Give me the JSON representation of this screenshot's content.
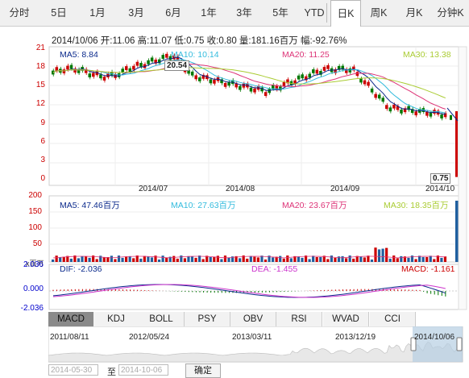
{
  "tabs": [
    "分时",
    "5日",
    "1月",
    "3月",
    "6月",
    "1年",
    "3年",
    "5年",
    "YTD",
    "日K",
    "周K",
    "月K",
    "分钟K"
  ],
  "active_tab": "日K",
  "quote": "2014/10/06 开:11.06 高:11.07 低:0.75 收:0.80 量:181.16百万 幅:-92.76%",
  "main_ma": {
    "ma5": "MA5: 8.84",
    "ma10": "MA10: 10.14",
    "ma20": "MA20: 11.25",
    "ma30": "MA30: 13.38"
  },
  "price_axis": [
    "21",
    "18",
    "15",
    "12",
    "9",
    "6",
    "3",
    "0"
  ],
  "high_label": "20.54",
  "low_label": "0.75",
  "date_axis": [
    "2014/07",
    "2014/08",
    "2014/09",
    "2014/10"
  ],
  "vol_ma": {
    "ma5": "MA5: 47.46百万",
    "ma10": "MA10: 27.63百万",
    "ma20": "MA20: 23.67百万",
    "ma30": "MA30: 18.35百万"
  },
  "vol_axis": [
    "200",
    "150",
    "100",
    "50"
  ],
  "vol_unit": "x百万",
  "macd": {
    "dif": "DIF: -2.036",
    "dea": "DEA: -1.455",
    "macd": "MACD: -1.161"
  },
  "macd_axis": [
    "2.036",
    "0.000",
    "-2.036"
  ],
  "indicator_tabs": [
    "MACD",
    "KDJ",
    "BOLL",
    "PSY",
    "OBV",
    "RSI",
    "WVAD",
    "CCI"
  ],
  "active_indicator": "MACD",
  "range_axis": [
    "2011/08/11",
    "2012/05/24",
    "2013/03/11",
    "2013/12/19",
    "2014/10/06"
  ],
  "range_start": "2014-05-30",
  "range_sep": "至",
  "range_end": "2014-10-06",
  "confirm_button": "确定",
  "colors": {
    "up": "#cc0000",
    "down": "#007700",
    "ma5": "#0b2a8c",
    "ma10": "#33bbdd",
    "ma20": "#dd3377",
    "ma30": "#aacc33",
    "axis": "#cc0000"
  }
}
